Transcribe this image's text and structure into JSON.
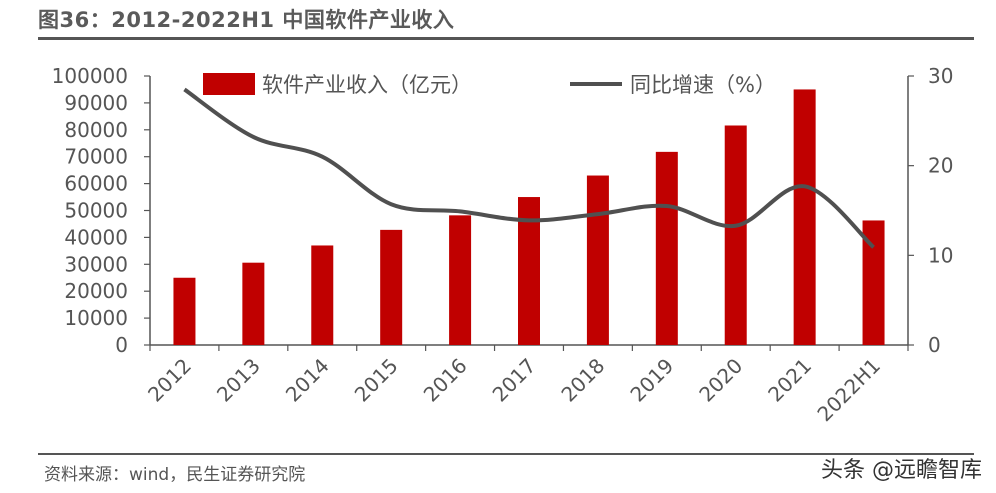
{
  "header": {
    "title": "图36：2012-2022H1 中国软件产业收入"
  },
  "footer": {
    "source": "资料来源：wind，民生证券研究院",
    "watermark": "头条 @远瞻智库"
  },
  "chart_data": {
    "type": "bar",
    "categories": [
      "2012",
      "2013",
      "2014",
      "2015",
      "2016",
      "2017",
      "2018",
      "2019",
      "2020",
      "2021",
      "2022H1"
    ],
    "series": [
      {
        "name": "软件产业收入（亿元）",
        "type": "bar",
        "axis": "left",
        "color": "#c00000",
        "values": [
          25000,
          30600,
          37000,
          42800,
          48200,
          55000,
          63000,
          71800,
          81600,
          95000,
          46300
        ]
      },
      {
        "name": "同比增速（%）",
        "type": "line",
        "axis": "right",
        "color": "#505050",
        "values": [
          28.5,
          23.2,
          21.0,
          15.7,
          14.9,
          13.9,
          14.6,
          15.5,
          13.3,
          17.7,
          10.9
        ]
      }
    ],
    "y_left": {
      "min": 0,
      "max": 100000,
      "step": 10000,
      "ticks": [
        "0",
        "10000",
        "20000",
        "30000",
        "40000",
        "50000",
        "60000",
        "70000",
        "80000",
        "90000",
        "100000"
      ]
    },
    "y_right": {
      "min": 0,
      "max": 30,
      "step": 10,
      "ticks": [
        "0",
        "10",
        "20",
        "30"
      ]
    },
    "legend": "top",
    "grid": false
  }
}
